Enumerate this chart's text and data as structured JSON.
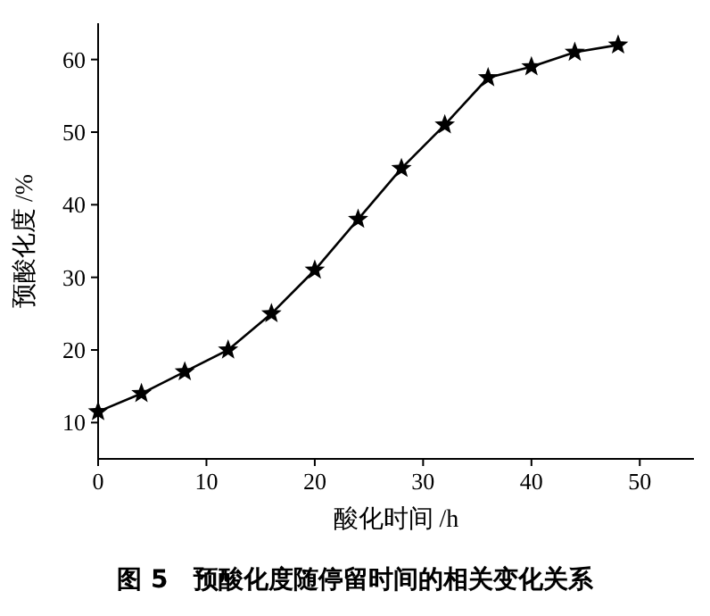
{
  "chart_data": {
    "type": "line",
    "title": "图 5　预酸化度随停留时间的相关变化关系",
    "xlabel": "酸化时间 /h",
    "ylabel": "预酸化度 /%",
    "x": [
      0,
      4,
      8,
      12,
      16,
      20,
      24,
      28,
      32,
      36,
      40,
      44,
      48
    ],
    "series": [
      {
        "color": "#000000",
        "values": [
          11.5,
          14,
          17,
          20,
          25,
          31,
          38,
          45,
          51,
          57.5,
          59,
          61,
          62
        ]
      }
    ],
    "xlim": [
      0,
      55
    ],
    "xticks": [
      0,
      10,
      20,
      30,
      40,
      50
    ],
    "ylim": [
      5,
      65
    ],
    "yticks": [
      10,
      20,
      30,
      40,
      50,
      60
    ],
    "marker": "star",
    "line_style": "solid"
  }
}
